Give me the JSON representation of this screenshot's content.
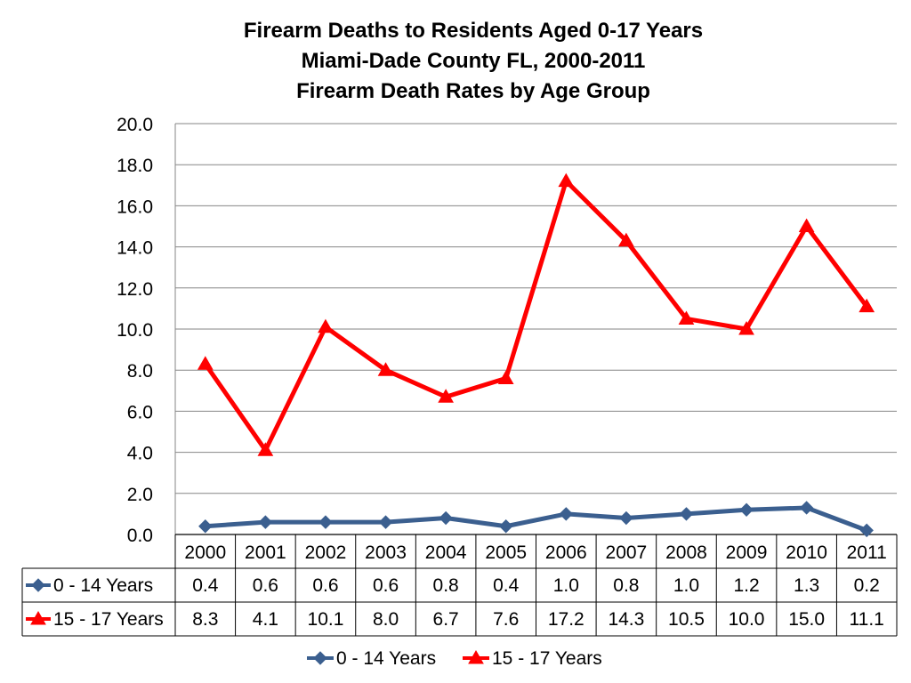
{
  "chart_data": {
    "type": "line",
    "title": [
      "Firearm Deaths to Residents Aged 0-17 Years",
      "Miami-Dade County FL, 2000-2011",
      "Firearm Death Rates by Age Group"
    ],
    "categories": [
      "2000",
      "2001",
      "2002",
      "2003",
      "2004",
      "2005",
      "2006",
      "2007",
      "2008",
      "2009",
      "2010",
      "2011"
    ],
    "ylim": [
      0,
      20
    ],
    "yticks": [
      "0.0",
      "2.0",
      "4.0",
      "6.0",
      "8.0",
      "10.0",
      "12.0",
      "14.0",
      "16.0",
      "18.0",
      "20.0"
    ],
    "grid": true,
    "legend_position": "bottom",
    "data_table": true,
    "series": [
      {
        "name": "0 - 14 Years",
        "color": "#3B5F8F",
        "marker": "diamond",
        "values": [
          0.4,
          0.6,
          0.6,
          0.6,
          0.8,
          0.4,
          1.0,
          0.8,
          1.0,
          1.2,
          1.3,
          0.2
        ],
        "labels": [
          "0.4",
          "0.6",
          "0.6",
          "0.6",
          "0.8",
          "0.4",
          "1.0",
          "0.8",
          "1.0",
          "1.2",
          "1.3",
          "0.2"
        ]
      },
      {
        "name": "15 - 17 Years",
        "color": "#FF0000",
        "marker": "triangle",
        "values": [
          8.3,
          4.1,
          10.1,
          8.0,
          6.7,
          7.6,
          17.2,
          14.3,
          10.5,
          10.0,
          15.0,
          11.1
        ],
        "labels": [
          "8.3",
          "4.1",
          "10.1",
          "8.0",
          "6.7",
          "7.6",
          "17.2",
          "14.3",
          "10.5",
          "10.0",
          "15.0",
          "11.1"
        ]
      }
    ]
  }
}
